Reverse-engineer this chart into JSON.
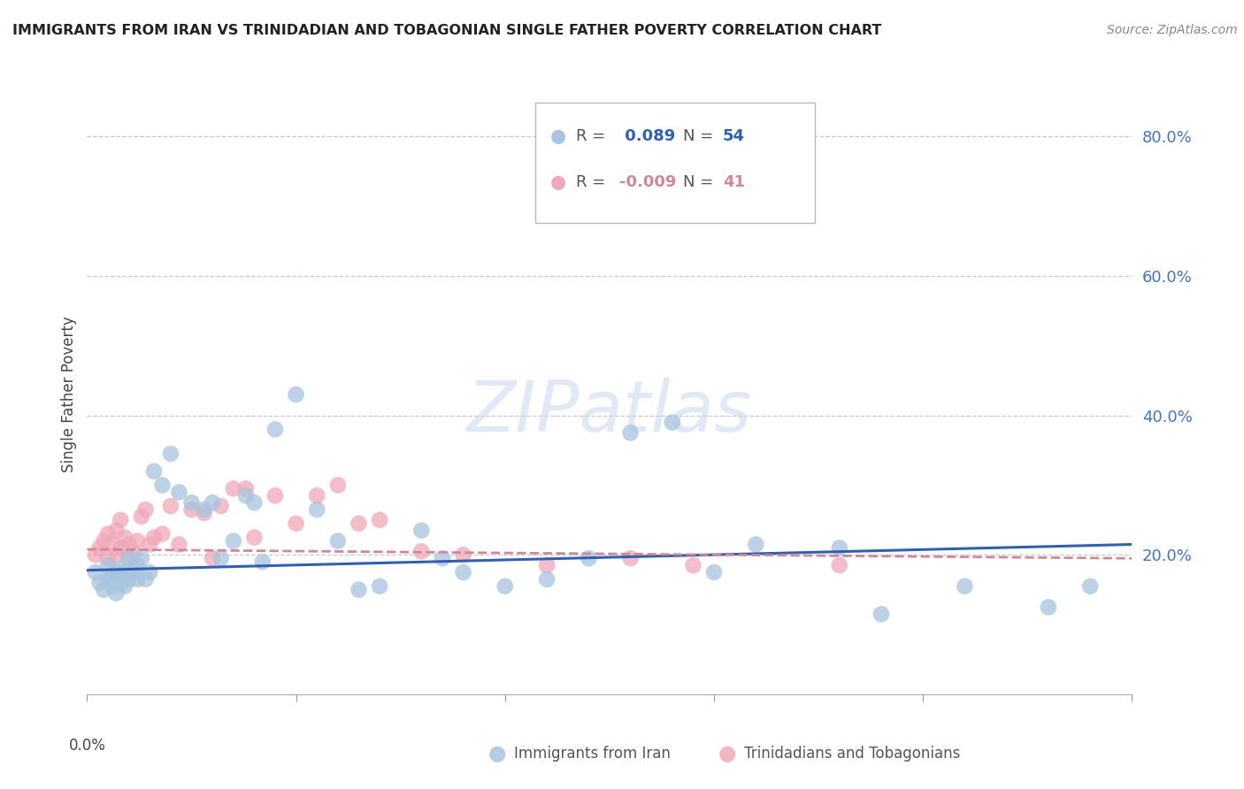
{
  "title": "IMMIGRANTS FROM IRAN VS TRINIDADIAN AND TOBAGONIAN SINGLE FATHER POVERTY CORRELATION CHART",
  "source": "Source: ZipAtlas.com",
  "ylabel": "Single Father Poverty",
  "x_range": [
    0.0,
    0.25
  ],
  "y_range": [
    0.0,
    0.86
  ],
  "iran_color": "#a8c4e0",
  "tnt_color": "#f0a8b8",
  "iran_line_color": "#3060b0",
  "tnt_line_color": "#d08898",
  "legend_iran_R": "0.089",
  "legend_iran_N": "54",
  "legend_tnt_R": "-0.009",
  "legend_tnt_N": "41",
  "watermark_text": "ZIPatlas",
  "iran_scatter_x": [
    0.002,
    0.003,
    0.004,
    0.005,
    0.005,
    0.006,
    0.006,
    0.007,
    0.007,
    0.008,
    0.008,
    0.009,
    0.009,
    0.01,
    0.01,
    0.011,
    0.012,
    0.012,
    0.013,
    0.014,
    0.015,
    0.016,
    0.018,
    0.02,
    0.022,
    0.025,
    0.028,
    0.03,
    0.032,
    0.035,
    0.038,
    0.04,
    0.042,
    0.045,
    0.05,
    0.055,
    0.06,
    0.065,
    0.07,
    0.08,
    0.085,
    0.09,
    0.1,
    0.11,
    0.12,
    0.13,
    0.14,
    0.15,
    0.16,
    0.18,
    0.19,
    0.21,
    0.23,
    0.24
  ],
  "iran_scatter_y": [
    0.175,
    0.16,
    0.15,
    0.165,
    0.185,
    0.155,
    0.17,
    0.145,
    0.175,
    0.16,
    0.18,
    0.155,
    0.175,
    0.165,
    0.195,
    0.175,
    0.165,
    0.185,
    0.195,
    0.165,
    0.175,
    0.32,
    0.3,
    0.345,
    0.29,
    0.275,
    0.265,
    0.275,
    0.195,
    0.22,
    0.285,
    0.275,
    0.19,
    0.38,
    0.43,
    0.265,
    0.22,
    0.15,
    0.155,
    0.235,
    0.195,
    0.175,
    0.155,
    0.165,
    0.195,
    0.375,
    0.39,
    0.175,
    0.215,
    0.21,
    0.115,
    0.155,
    0.125,
    0.155
  ],
  "tnt_scatter_x": [
    0.002,
    0.003,
    0.004,
    0.005,
    0.005,
    0.006,
    0.007,
    0.007,
    0.008,
    0.008,
    0.009,
    0.01,
    0.01,
    0.011,
    0.012,
    0.013,
    0.014,
    0.015,
    0.016,
    0.018,
    0.02,
    0.022,
    0.025,
    0.028,
    0.03,
    0.032,
    0.035,
    0.038,
    0.04,
    0.045,
    0.05,
    0.055,
    0.06,
    0.065,
    0.07,
    0.08,
    0.09,
    0.11,
    0.13,
    0.145,
    0.18
  ],
  "tnt_scatter_y": [
    0.2,
    0.21,
    0.22,
    0.195,
    0.23,
    0.215,
    0.2,
    0.235,
    0.21,
    0.25,
    0.225,
    0.215,
    0.195,
    0.205,
    0.22,
    0.255,
    0.265,
    0.215,
    0.225,
    0.23,
    0.27,
    0.215,
    0.265,
    0.26,
    0.195,
    0.27,
    0.295,
    0.295,
    0.225,
    0.285,
    0.245,
    0.285,
    0.3,
    0.245,
    0.25,
    0.205,
    0.2,
    0.185,
    0.195,
    0.185,
    0.185
  ],
  "iran_line_y0": 0.178,
  "iran_line_y1": 0.215,
  "tnt_line_y0": 0.208,
  "tnt_line_y1": 0.195,
  "yticks": [
    0.2,
    0.4,
    0.6,
    0.8
  ],
  "ytick_labels": [
    "20.0%",
    "40.0%",
    "60.0%",
    "80.0%"
  ]
}
